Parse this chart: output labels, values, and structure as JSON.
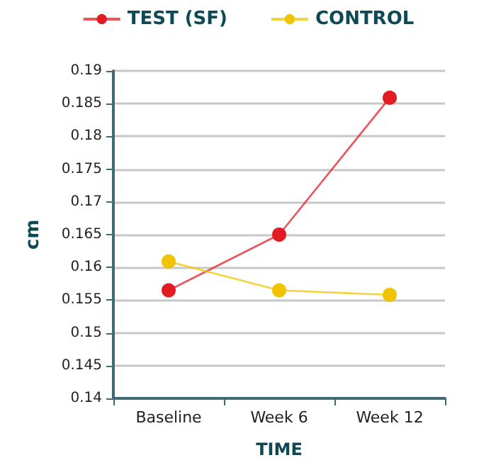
{
  "chart_data": {
    "type": "line",
    "xlabel": "TIME",
    "ylabel": "cm",
    "categories": [
      "Baseline",
      "Week 6",
      "Week 12"
    ],
    "series": [
      {
        "name": "TEST (SF)",
        "color": "#e31b23",
        "values": [
          0.1565,
          0.165,
          0.1859
        ]
      },
      {
        "name": "CONTROL",
        "color": "#f0c400",
        "values": [
          0.1609,
          0.1565,
          0.1558
        ]
      }
    ],
    "ylim": [
      0.14,
      0.19
    ],
    "yticks": [
      0.14,
      0.145,
      0.15,
      0.155,
      0.16,
      0.165,
      0.17,
      0.175,
      0.18,
      0.185,
      0.19
    ],
    "grid": "y",
    "legend": "top",
    "marker": "circle",
    "line_style": "solid"
  }
}
